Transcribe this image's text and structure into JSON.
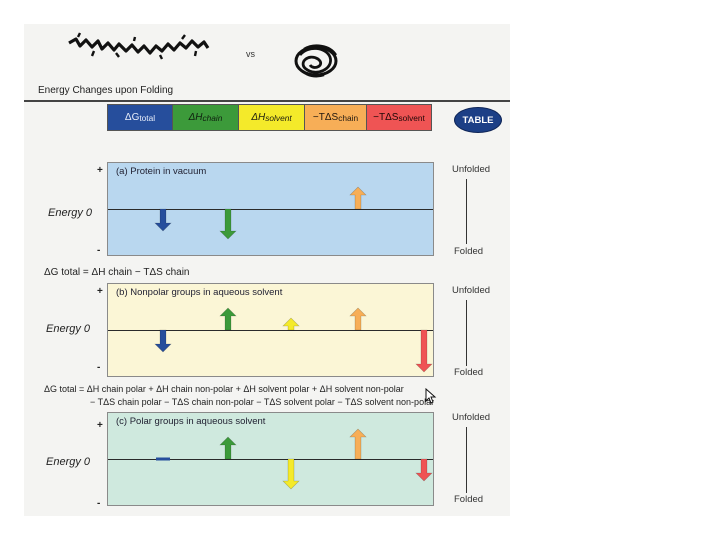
{
  "vs_label": "vs",
  "title": "Energy Changes upon Folding",
  "legend": [
    {
      "label": "ΔG",
      "sub": "total",
      "italic": false,
      "color": "#264e9c",
      "text_color": "#e8eefa"
    },
    {
      "label": "ΔH",
      "sub": "chain",
      "italic": true,
      "color": "#3c9a3a",
      "text_color": "#102010"
    },
    {
      "label": "ΔH",
      "sub": "solvent",
      "italic": true,
      "color": "#f4ea2a",
      "text_color": "#202010"
    },
    {
      "label": "−TΔS",
      "sub": "chain",
      "italic": false,
      "color": "#f7ae57",
      "text_color": "#201810"
    },
    {
      "label": "−TΔS",
      "sub": "solvent",
      "italic": false,
      "color": "#ef5454",
      "text_color": "#200808"
    }
  ],
  "table_button": "TABLE",
  "panels": [
    {
      "header": "(a) Protein in vacuum",
      "energy": "Energy 0",
      "plus": "+",
      "minus": "-",
      "unfolded": "Unfolded",
      "folded": "Folded"
    },
    {
      "header": "(b) Nonpolar groups in aqueous solvent",
      "energy": "Energy 0",
      "plus": "+",
      "minus": "-",
      "unfolded": "Unfolded",
      "folded": "Folded"
    },
    {
      "header": "(c) Polar groups in aqueous solvent",
      "energy": "Energy 0",
      "plus": "+",
      "minus": "-",
      "unfolded": "Unfolded",
      "folded": "Folded"
    }
  ],
  "equations": {
    "eq1": "ΔG total = ΔH chain − TΔS chain",
    "eq2_line1": "ΔG total = ΔH chain polar + ΔH chain non-polar + ΔH solvent polar + ΔH solvent non-polar",
    "eq2_line2": "− TΔS chain polar − TΔS chain non-polar − TΔS solvent polar − TΔS solvent non-polar"
  },
  "arrows": {
    "a": [
      {
        "term": "ΔG total",
        "direction": "down",
        "size": "small",
        "color": "#264e9c"
      },
      {
        "term": "ΔH chain",
        "direction": "down",
        "size": "medium",
        "color": "#3c9a3a"
      },
      {
        "term": "−TΔS chain",
        "direction": "up",
        "size": "small",
        "color": "#f7ae57"
      }
    ],
    "b": [
      {
        "term": "ΔG total",
        "direction": "down",
        "size": "small",
        "color": "#264e9c"
      },
      {
        "term": "ΔH chain",
        "direction": "up",
        "size": "small",
        "color": "#3c9a3a"
      },
      {
        "term": "ΔH solvent",
        "direction": "up",
        "size": "tiny",
        "color": "#f4ea2a"
      },
      {
        "term": "−TΔS chain",
        "direction": "up",
        "size": "small",
        "color": "#f7ae57"
      },
      {
        "term": "−TΔS solvent",
        "direction": "down",
        "size": "large",
        "color": "#ef5454"
      }
    ],
    "c": [
      {
        "term": "ΔG total",
        "direction": "flat",
        "size": "tiny",
        "color": "#264e9c"
      },
      {
        "term": "ΔH chain",
        "direction": "up",
        "size": "small",
        "color": "#3c9a3a"
      },
      {
        "term": "ΔH solvent",
        "direction": "down",
        "size": "medium",
        "color": "#f4ea2a"
      },
      {
        "term": "−TΔS chain",
        "direction": "up",
        "size": "medium",
        "color": "#f7ae57"
      },
      {
        "term": "−TΔS solvent",
        "direction": "down",
        "size": "small",
        "color": "#ef5454"
      }
    ]
  }
}
